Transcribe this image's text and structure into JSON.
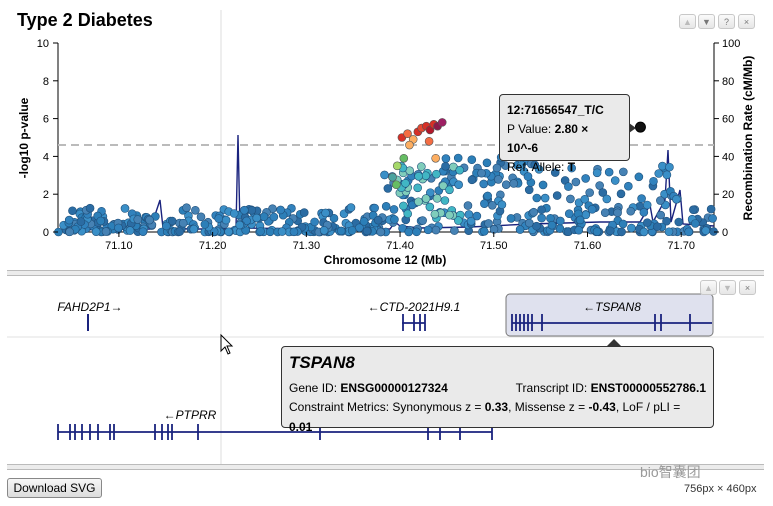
{
  "title": "Type 2 Diabetes",
  "panel_buttons": [
    "▲",
    "▼",
    "?",
    "×"
  ],
  "gene_panel_buttons": [
    "▲",
    "▼",
    "×"
  ],
  "chart_data": {
    "type": "scatter",
    "xlabel": "Chromosome 12 (Mb)",
    "ylabel": "-log10 p-value",
    "y2label": "Recombination Rate (cM/Mb)",
    "xlim": [
      71.035,
      71.735
    ],
    "ylim": [
      0,
      10
    ],
    "y2lim": [
      0,
      100
    ],
    "x_ticks": [
      "71.10",
      "71.20",
      "71.30",
      "71.40",
      "71.50",
      "71.60",
      "71.70"
    ],
    "y_ticks": [
      "0",
      "2",
      "4",
      "6",
      "8",
      "10"
    ],
    "y2_ticks": [
      "0",
      "20",
      "40",
      "60",
      "80",
      "100"
    ],
    "significance_line": 4.6,
    "lead_variant": {
      "x": 71.6565,
      "y": 5.55
    },
    "top_points": [
      {
        "x": 71.402,
        "y": 5.0,
        "color": "#d73027"
      },
      {
        "x": 71.408,
        "y": 5.2,
        "color": "#f46d43"
      },
      {
        "x": 71.414,
        "y": 4.9,
        "color": "#fdae61"
      },
      {
        "x": 71.419,
        "y": 5.3,
        "color": "#d73027"
      },
      {
        "x": 71.423,
        "y": 5.5,
        "color": "#e34a33"
      },
      {
        "x": 71.428,
        "y": 5.6,
        "color": "#d73027"
      },
      {
        "x": 71.432,
        "y": 5.4,
        "color": "#b2182b"
      },
      {
        "x": 71.436,
        "y": 5.7,
        "color": "#d73027"
      },
      {
        "x": 71.44,
        "y": 5.6,
        "color": "#8b1a4a"
      },
      {
        "x": 71.445,
        "y": 5.8,
        "color": "#9e1f63"
      },
      {
        "x": 71.41,
        "y": 4.6,
        "color": "#fdae61"
      },
      {
        "x": 71.431,
        "y": 4.8,
        "color": "#f46d43"
      },
      {
        "x": 71.397,
        "y": 3.5,
        "color": "#a6d96a"
      },
      {
        "x": 71.404,
        "y": 3.9,
        "color": "#66bd63"
      },
      {
        "x": 71.396,
        "y": 2.5,
        "color": "#66bd63"
      },
      {
        "x": 71.392,
        "y": 2.9,
        "color": "#4aa3a0"
      },
      {
        "x": 71.438,
        "y": 3.9,
        "color": "#fdae61"
      }
    ]
  },
  "variant_tooltip": {
    "name": "12:71656547_T/C",
    "pvalue_label": "P Value: ",
    "pvalue": "2.80 × 10^-6",
    "allele_label": "Ref. Allele: ",
    "allele": "T"
  },
  "genes": [
    {
      "name": "FAHD2P1→"
    },
    {
      "name": "←CTD-2021H9.1"
    },
    {
      "name": "←TSPAN8"
    },
    {
      "name": "←PTPRR"
    }
  ],
  "gene_tooltip": {
    "gene": "TSPAN8",
    "gene_id_label": "Gene ID: ",
    "gene_id": "ENSG00000127324",
    "transcript_label": "Transcript ID: ",
    "transcript_id": "ENST00000552786.1",
    "constraint_label": "Constraint Metrics: Synonymous z = ",
    "syn_z": "0.33",
    "missense_label": ", Missense z = ",
    "mis_z": "-0.43",
    "lof_label": ", LoF / pLI = ",
    "lof": "0.01"
  },
  "download_label": "Download SVG",
  "dimensions": "756px × 460px",
  "watermark": "bio智囊团"
}
